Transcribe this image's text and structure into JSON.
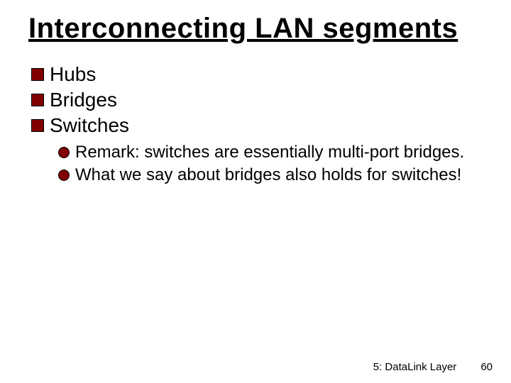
{
  "title": "Interconnecting LAN segments",
  "bullets": [
    {
      "text": "Hubs"
    },
    {
      "text": "Bridges"
    },
    {
      "text": "Switches",
      "sub": [
        {
          "text": "Remark: switches are essentially multi-port bridges."
        },
        {
          "text": "What we say about bridges also holds for switches!"
        }
      ]
    }
  ],
  "footer": {
    "section": "5: DataLink Layer",
    "page": "60"
  },
  "style": {
    "title_fontsize": 40,
    "bullet_fontsize": 28,
    "subbullet_fontsize": 24,
    "footer_fontsize": 15,
    "font_family": "Comic Sans MS",
    "text_color": "#000000",
    "bullet_marker_color": "#800000",
    "bullet_marker_border": "#000000",
    "background_color": "#ffffff",
    "slide_width": 720,
    "slide_height": 540
  }
}
